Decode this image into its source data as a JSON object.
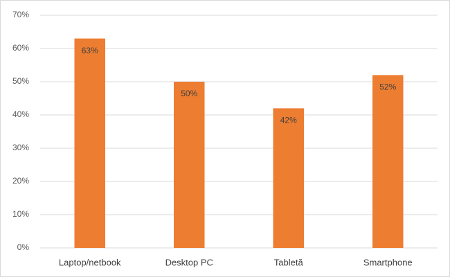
{
  "chart_data": {
    "type": "bar",
    "categories": [
      "Laptop/netbook",
      "Desktop PC",
      "Tabletă",
      "Smartphone"
    ],
    "values": [
      63,
      50,
      42,
      52
    ],
    "value_labels": [
      "63%",
      "50%",
      "42%",
      "52%"
    ],
    "color": "#ed7d31",
    "ylim": [
      0,
      70
    ],
    "yticks": [
      {
        "value": 0,
        "label": "0%"
      },
      {
        "value": 10,
        "label": "10%"
      },
      {
        "value": 20,
        "label": "20%"
      },
      {
        "value": 30,
        "label": "30%"
      },
      {
        "value": 40,
        "label": "40%"
      },
      {
        "value": 50,
        "label": "50%"
      },
      {
        "value": 60,
        "label": "60%"
      },
      {
        "value": 70,
        "label": "70%"
      }
    ],
    "grid": true
  }
}
